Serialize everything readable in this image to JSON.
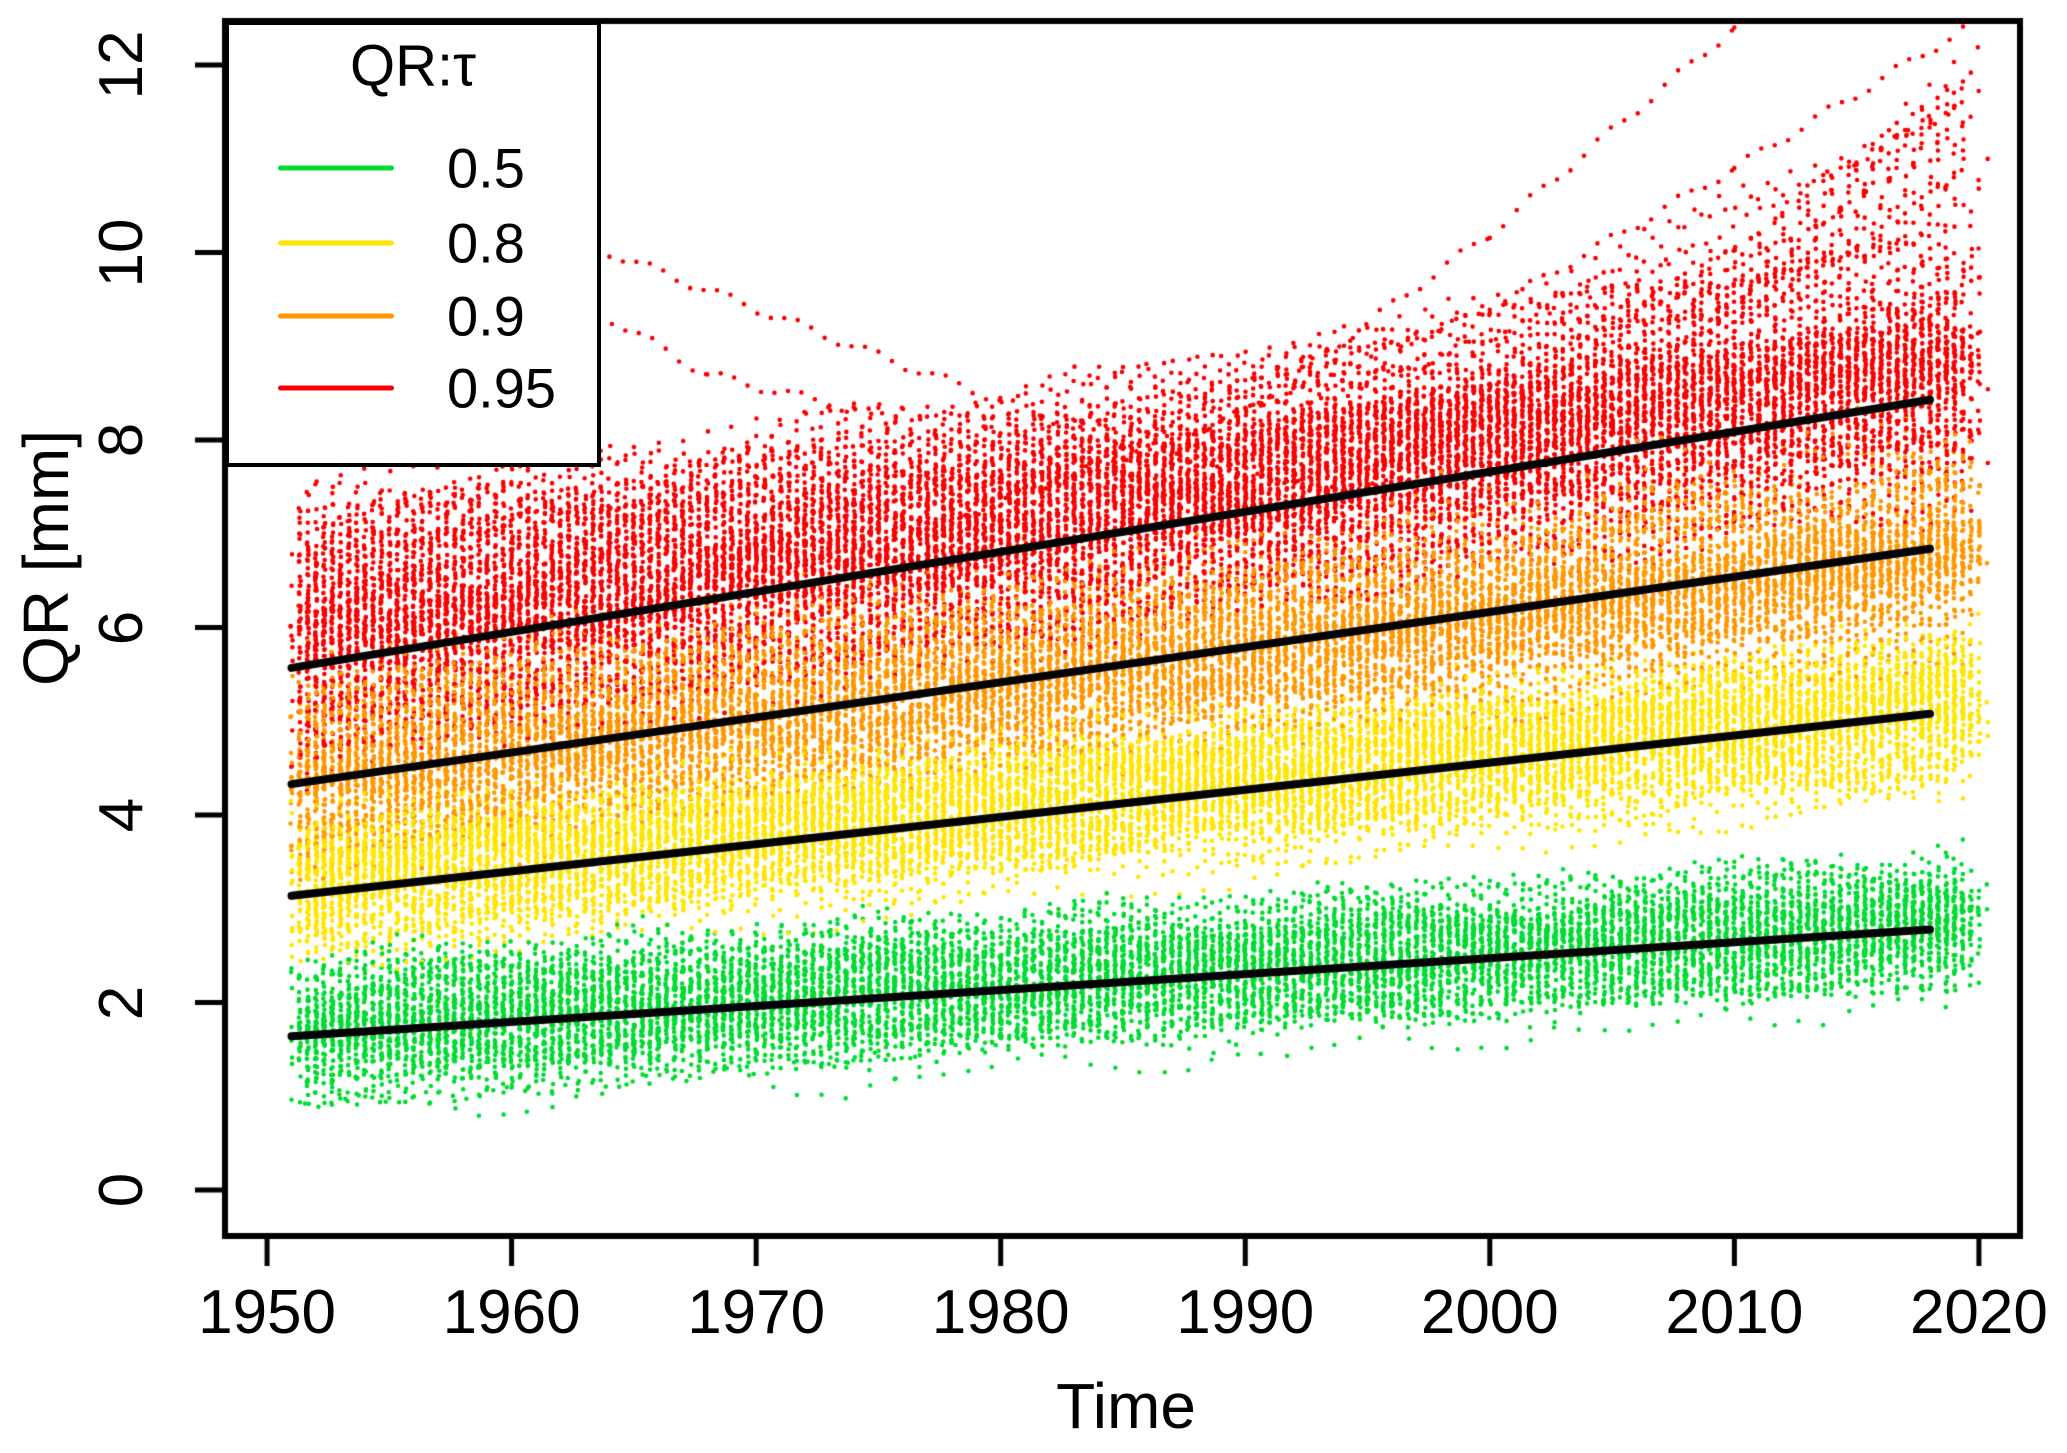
{
  "chart_data": {
    "type": "scatter",
    "title": "",
    "xlabel": "Time",
    "ylabel": "QR [mm]",
    "xlim": [
      1948.28,
      2021.68
    ],
    "ylim": [
      -0.49,
      12.47
    ],
    "xticks": [
      1950,
      1960,
      1970,
      1980,
      1990,
      2000,
      2010,
      2020
    ],
    "yticks": [
      0,
      2,
      4,
      6,
      8,
      10,
      12
    ],
    "grid": false,
    "background": "#ffffff",
    "axis_color": "#000000",
    "legend": {
      "title": "QR:τ",
      "position": "top-left",
      "entries": [
        {
          "label": "0.5",
          "color": "#00DC32"
        },
        {
          "label": "0.8",
          "color": "#FFE600"
        },
        {
          "label": "0.9",
          "color": "#FF9800"
        },
        {
          "label": "0.95",
          "color": "#FA0000"
        }
      ]
    },
    "trend_color": "#000000",
    "trend_lines": [
      {
        "tau": "0.5",
        "x": [
          1951,
          2018
        ],
        "y": [
          1.64,
          2.78
        ]
      },
      {
        "tau": "0.8",
        "x": [
          1951,
          2018
        ],
        "y": [
          3.14,
          5.08
        ]
      },
      {
        "tau": "0.9",
        "x": [
          1951,
          2018
        ],
        "y": [
          4.33,
          6.84
        ]
      },
      {
        "tau": "0.95",
        "x": [
          1951,
          2018
        ],
        "y": [
          5.57,
          8.43
        ]
      }
    ],
    "clouds": [
      {
        "tau": "0.5",
        "color": "#00DC32",
        "n_tracks": 55,
        "year_range": [
          1951,
          2019.5
        ],
        "start_center": 1.75,
        "start_spread": 0.8,
        "end_center": 2.9,
        "end_spread": 1.0,
        "seed": 11
      },
      {
        "tau": "0.8",
        "color": "#FFE600",
        "n_tracks": 62,
        "year_range": [
          1951,
          2019.5
        ],
        "start_center": 3.28,
        "start_spread": 0.95,
        "end_center": 5.15,
        "end_spread": 1.3,
        "seed": 22
      },
      {
        "tau": "0.9",
        "color": "#FF9800",
        "n_tracks": 62,
        "year_range": [
          1951,
          2019.5
        ],
        "start_center": 4.45,
        "start_spread": 1.1,
        "end_center": 6.85,
        "end_spread": 1.45,
        "seed": 33
      },
      {
        "tau": "0.95",
        "color": "#FA0000",
        "n_tracks": 80,
        "year_range": [
          1951,
          2019.5
        ],
        "start_center": 5.95,
        "start_spread": 1.7,
        "end_center": 8.7,
        "end_spread": 2.0,
        "upper_tail": 3.2,
        "seed": 44
      }
    ],
    "outlier_tracks": [
      {
        "color": "#FA0000",
        "points": [
          [
            1958,
            11.2
          ],
          [
            1964,
            10.0
          ],
          [
            1975,
            8.9
          ],
          [
            1985,
            7.95
          ],
          [
            1993,
            7.5
          ],
          [
            2000,
            7.55
          ]
        ]
      },
      {
        "color": "#FA0000",
        "points": [
          [
            1978,
            7.15
          ],
          [
            1990,
            8.3
          ],
          [
            2000,
            10.2
          ],
          [
            2010,
            12.4
          ],
          [
            2012.5,
            12.9
          ]
        ]
      },
      {
        "color": "#FA0000",
        "points": [
          [
            1988,
            8.1
          ],
          [
            2000,
            9.4
          ],
          [
            2010,
            10.9
          ],
          [
            2019.5,
            12.4
          ]
        ]
      },
      {
        "color": "#FA0000",
        "points": [
          [
            1992,
            8.3
          ],
          [
            2005,
            9.6
          ],
          [
            2019.5,
            11.6
          ]
        ]
      },
      {
        "color": "#FA0000",
        "points": [
          [
            1959,
            9.0
          ],
          [
            1963,
            9.45
          ],
          [
            1968,
            8.7
          ],
          [
            1976,
            8.2
          ]
        ]
      },
      {
        "color": "#00DC32",
        "points": [
          [
            1951,
            0.92
          ],
          [
            1960,
            1.05
          ],
          [
            1971,
            1.3
          ],
          [
            1981,
            1.6
          ]
        ]
      }
    ]
  }
}
